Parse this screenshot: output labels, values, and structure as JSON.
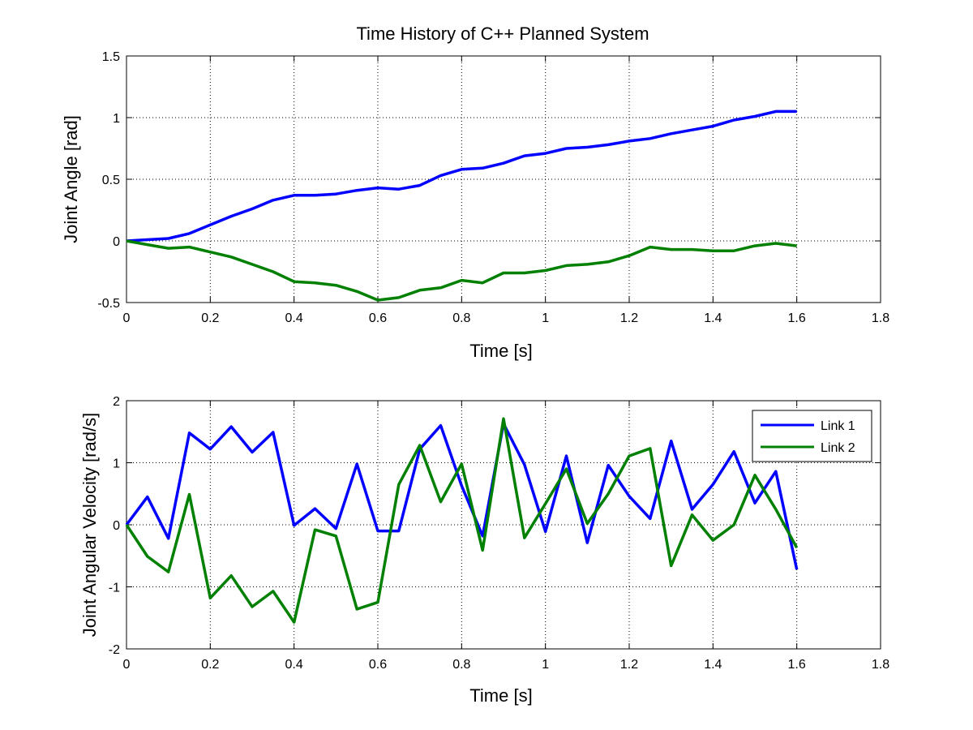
{
  "chart_data": [
    {
      "type": "line",
      "title": "Time History of C++ Planned System",
      "xlabel": "Time [s]",
      "ylabel": "Joint Angle [rad]",
      "xlim": [
        0,
        1.8
      ],
      "ylim": [
        -0.5,
        1.5
      ],
      "xticks": [
        0,
        0.2,
        0.4,
        0.6,
        0.8,
        1,
        1.2,
        1.4,
        1.6,
        1.8
      ],
      "yticks": [
        -0.5,
        0,
        0.5,
        1,
        1.5
      ],
      "grid": true,
      "x": [
        0,
        0.05,
        0.1,
        0.15,
        0.2,
        0.25,
        0.3,
        0.35,
        0.4,
        0.45,
        0.5,
        0.55,
        0.6,
        0.65,
        0.7,
        0.75,
        0.8,
        0.85,
        0.9,
        0.95,
        1.0,
        1.05,
        1.1,
        1.15,
        1.2,
        1.25,
        1.3,
        1.35,
        1.4,
        1.45,
        1.5,
        1.55,
        1.6
      ],
      "series": [
        {
          "color": "#0000ff",
          "values": [
            0.0,
            0.01,
            0.02,
            0.06,
            0.13,
            0.2,
            0.26,
            0.33,
            0.37,
            0.37,
            0.38,
            0.41,
            0.43,
            0.42,
            0.45,
            0.53,
            0.58,
            0.59,
            0.63,
            0.69,
            0.71,
            0.75,
            0.76,
            0.78,
            0.81,
            0.83,
            0.87,
            0.9,
            0.93,
            0.98,
            1.01,
            1.05,
            1.05
          ]
        },
        {
          "color": "#008000",
          "values": [
            0.0,
            -0.03,
            -0.06,
            -0.05,
            -0.09,
            -0.13,
            -0.19,
            -0.25,
            -0.33,
            -0.34,
            -0.36,
            -0.41,
            -0.48,
            -0.46,
            -0.4,
            -0.38,
            -0.32,
            -0.34,
            -0.26,
            -0.26,
            -0.24,
            -0.2,
            -0.19,
            -0.17,
            -0.12,
            -0.05,
            -0.07,
            -0.07,
            -0.08,
            -0.08,
            -0.04,
            -0.02,
            -0.04
          ]
        }
      ]
    },
    {
      "type": "line",
      "xlabel": "Time [s]",
      "ylabel": "Joint Angular Velocity [rad/s]",
      "xlim": [
        0,
        1.8
      ],
      "ylim": [
        -2,
        2
      ],
      "xticks": [
        0,
        0.2,
        0.4,
        0.6,
        0.8,
        1,
        1.2,
        1.4,
        1.6,
        1.8
      ],
      "yticks": [
        -2,
        -1,
        0,
        1,
        2
      ],
      "grid": true,
      "legend_position": "top-right",
      "x": [
        0,
        0.05,
        0.1,
        0.15,
        0.2,
        0.25,
        0.3,
        0.35,
        0.4,
        0.45,
        0.5,
        0.55,
        0.6,
        0.65,
        0.7,
        0.75,
        0.8,
        0.85,
        0.9,
        0.95,
        1.0,
        1.05,
        1.1,
        1.15,
        1.2,
        1.25,
        1.3,
        1.35,
        1.4,
        1.45,
        1.5,
        1.55,
        1.6
      ],
      "series": [
        {
          "name": "Link 1",
          "color": "#0000ff",
          "values": [
            0.0,
            0.45,
            -0.22,
            1.48,
            1.22,
            1.58,
            1.17,
            1.49,
            -0.01,
            0.26,
            -0.06,
            0.98,
            -0.1,
            -0.1,
            1.22,
            1.6,
            0.63,
            -0.18,
            1.63,
            0.97,
            -0.11,
            1.11,
            -0.29,
            0.96,
            0.46,
            0.1,
            1.35,
            0.25,
            0.65,
            1.18,
            0.35,
            0.86,
            -0.72
          ]
        },
        {
          "name": "Link 2",
          "color": "#008000",
          "values": [
            0.0,
            -0.51,
            -0.76,
            0.49,
            -1.18,
            -0.82,
            -1.32,
            -1.07,
            -1.57,
            -0.08,
            -0.18,
            -1.36,
            -1.25,
            0.65,
            1.28,
            0.37,
            0.98,
            -0.41,
            1.71,
            -0.21,
            0.34,
            0.9,
            0.02,
            0.5,
            1.11,
            1.23,
            -0.66,
            0.16,
            -0.25,
            0.0,
            0.8,
            0.25,
            -0.37
          ]
        }
      ]
    }
  ]
}
